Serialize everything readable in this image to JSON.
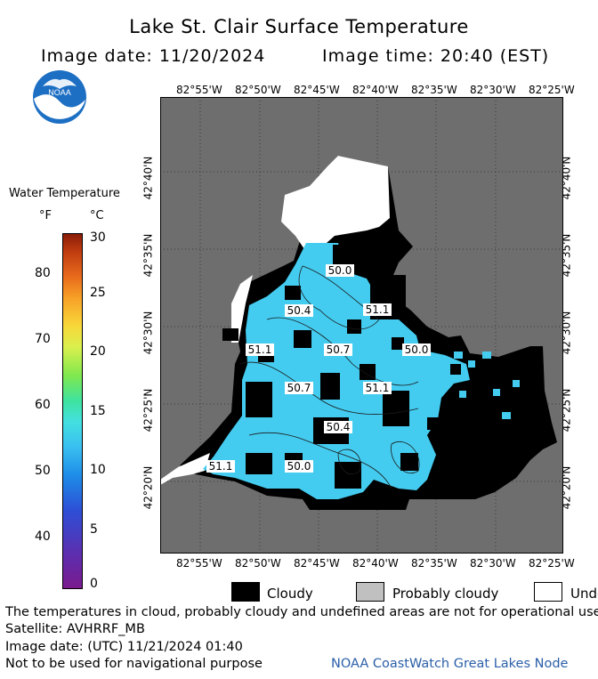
{
  "header": {
    "title": "Lake St. Clair Surface Temperature",
    "image_date": "Image date: 11/20/2024",
    "image_time": "Image time: 20:40 (EST)"
  },
  "logo": {
    "text": "NOAA"
  },
  "legend": {
    "title": "Water Temperature",
    "unit_f": "°F",
    "unit_c": "°C",
    "fahrenheit_ticks": [
      "80",
      "70",
      "60",
      "50",
      "40"
    ],
    "celsius_ticks": [
      "30",
      "25",
      "20",
      "15",
      "10",
      "5",
      "0"
    ],
    "scale_min_c": 0,
    "scale_max_c": 30
  },
  "map": {
    "longitude_labels": [
      "82°55'W",
      "82°50'W",
      "82°45'W",
      "82°40'W",
      "82°35'W",
      "82°30'W",
      "82°25'W"
    ],
    "latitude_labels": [
      "42°40'N",
      "42°35'N",
      "42°30'N",
      "42°25'N",
      "42°20'N"
    ],
    "temperature_labels": [
      "50.0",
      "51.1",
      "50.4",
      "51.1",
      "50.7",
      "50.0",
      "50.7",
      "51.1",
      "50.4",
      "51.1",
      "50.0"
    ],
    "colors": {
      "land": "#6e6e6e",
      "water": "#44ccf0",
      "cloud": "#000000",
      "undefined": "#ffffff",
      "probably_cloudy": "#c0c0c0"
    }
  },
  "map_legend": {
    "cloudy": "Cloudy",
    "probably_cloudy": "Probably cloudy",
    "undefined": "Undefined"
  },
  "footer": {
    "note": "The temperatures in cloud, probably cloudy and undefined areas are not for operational use",
    "satellite": "Satellite: AVHRRF_MB",
    "utc_date": "Image date: (UTC) 11/21/2024  01:40",
    "nav_warning": "Not to be used for navigational purpose",
    "credit": "NOAA CoastWatch Great Lakes Node"
  }
}
